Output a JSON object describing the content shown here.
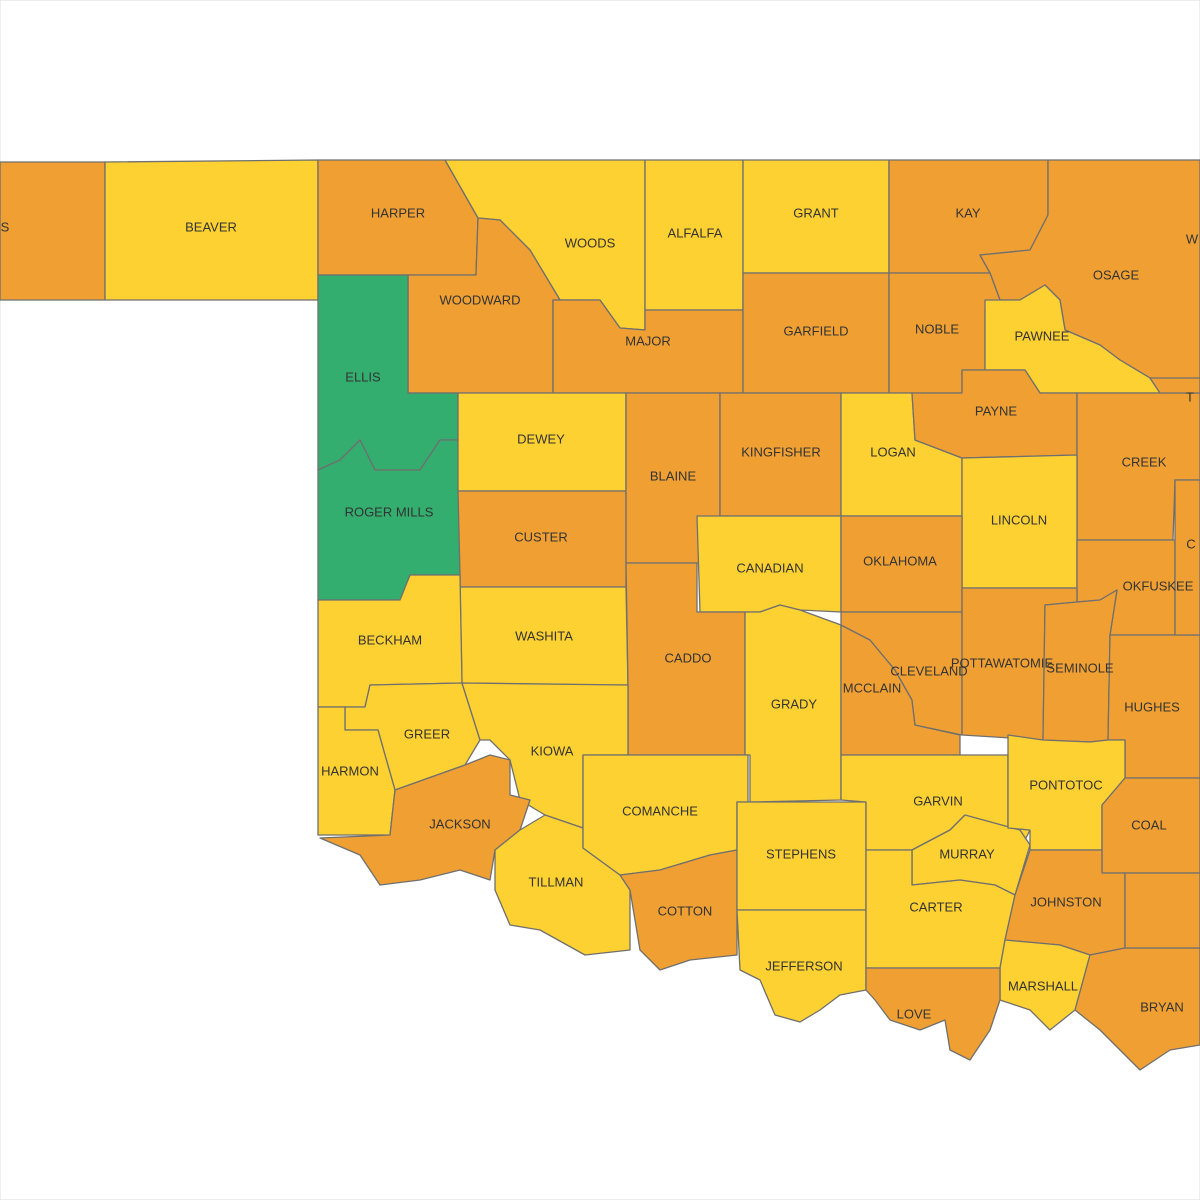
{
  "counties": [
    {
      "name": "S",
      "color": "#F0A033"
    },
    {
      "name": "BEAVER",
      "color": "#FDD131"
    },
    {
      "name": "HARPER",
      "color": "#F0A033"
    },
    {
      "name": "WOODS",
      "color": "#FDD131"
    },
    {
      "name": "ALFALFA",
      "color": "#FDD131"
    },
    {
      "name": "GRANT",
      "color": "#FDD131"
    },
    {
      "name": "KAY",
      "color": "#F0A033"
    },
    {
      "name": "OSAGE",
      "color": "#F0A033"
    },
    {
      "name": "WOODWARD",
      "color": "#F0A033"
    },
    {
      "name": "MAJOR",
      "color": "#F0A033"
    },
    {
      "name": "GARFIELD",
      "color": "#F0A033"
    },
    {
      "name": "NOBLE",
      "color": "#F0A033"
    },
    {
      "name": "PAWNEE",
      "color": "#FDD131"
    },
    {
      "name": "ELLIS",
      "color": "#33AE6E"
    },
    {
      "name": "ROGER MILLS",
      "color": "#33AE6E"
    },
    {
      "name": "DEWEY",
      "color": "#FDD131"
    },
    {
      "name": "CUSTER",
      "color": "#F0A033"
    },
    {
      "name": "BLAINE",
      "color": "#F0A033"
    },
    {
      "name": "KINGFISHER",
      "color": "#F0A033"
    },
    {
      "name": "LOGAN",
      "color": "#FDD131"
    },
    {
      "name": "PAYNE",
      "color": "#F0A033"
    },
    {
      "name": "CREEK",
      "color": "#F0A033"
    },
    {
      "name": "LINCOLN",
      "color": "#FDD131"
    },
    {
      "name": "CANADIAN",
      "color": "#FDD131"
    },
    {
      "name": "OKLAHOMA",
      "color": "#F0A033"
    },
    {
      "name": "OKFUSKEE",
      "color": "#F0A033"
    },
    {
      "name": "WASHITA",
      "color": "#FDD131"
    },
    {
      "name": "BECKHAM",
      "color": "#FDD131"
    },
    {
      "name": "CADDO",
      "color": "#F0A033"
    },
    {
      "name": "GRADY",
      "color": "#FDD131"
    },
    {
      "name": "MCCLAIN",
      "color": "#F0A033"
    },
    {
      "name": "CLEVELAND",
      "color": "#F0A033"
    },
    {
      "name": "POTTAWATOMIE",
      "color": "#F0A033"
    },
    {
      "name": "SEMINOLE",
      "color": "#F0A033"
    },
    {
      "name": "HUGHES",
      "color": "#F0A033"
    },
    {
      "name": "GREER",
      "color": "#FDD131"
    },
    {
      "name": "HARMON",
      "color": "#FDD131"
    },
    {
      "name": "KIOWA",
      "color": "#FDD131"
    },
    {
      "name": "JACKSON",
      "color": "#F0A033"
    },
    {
      "name": "TILLMAN",
      "color": "#FDD131"
    },
    {
      "name": "COMANCHE",
      "color": "#FDD131"
    },
    {
      "name": "COTTON",
      "color": "#F0A033"
    },
    {
      "name": "STEPHENS",
      "color": "#FDD131"
    },
    {
      "name": "JEFFERSON",
      "color": "#FDD131"
    },
    {
      "name": "GARVIN",
      "color": "#FDD131"
    },
    {
      "name": "MURRAY",
      "color": "#FDD131"
    },
    {
      "name": "CARTER",
      "color": "#FDD131"
    },
    {
      "name": "PONTOTOC",
      "color": "#FDD131"
    },
    {
      "name": "COAL",
      "color": "#F0A033"
    },
    {
      "name": "JOHNSTON",
      "color": "#F0A033"
    },
    {
      "name": "MARSHALL",
      "color": "#FDD131"
    },
    {
      "name": "LOVE",
      "color": "#F0A033"
    },
    {
      "name": "BRYAN",
      "color": "#F0A033"
    },
    {
      "color": "#F0A033"
    },
    {
      "name": "C",
      "color": "#F0A033"
    },
    {
      "name": "T",
      "color": "#F0A033"
    },
    {
      "name": "W",
      "color": "#F0A033"
    }
  ]
}
